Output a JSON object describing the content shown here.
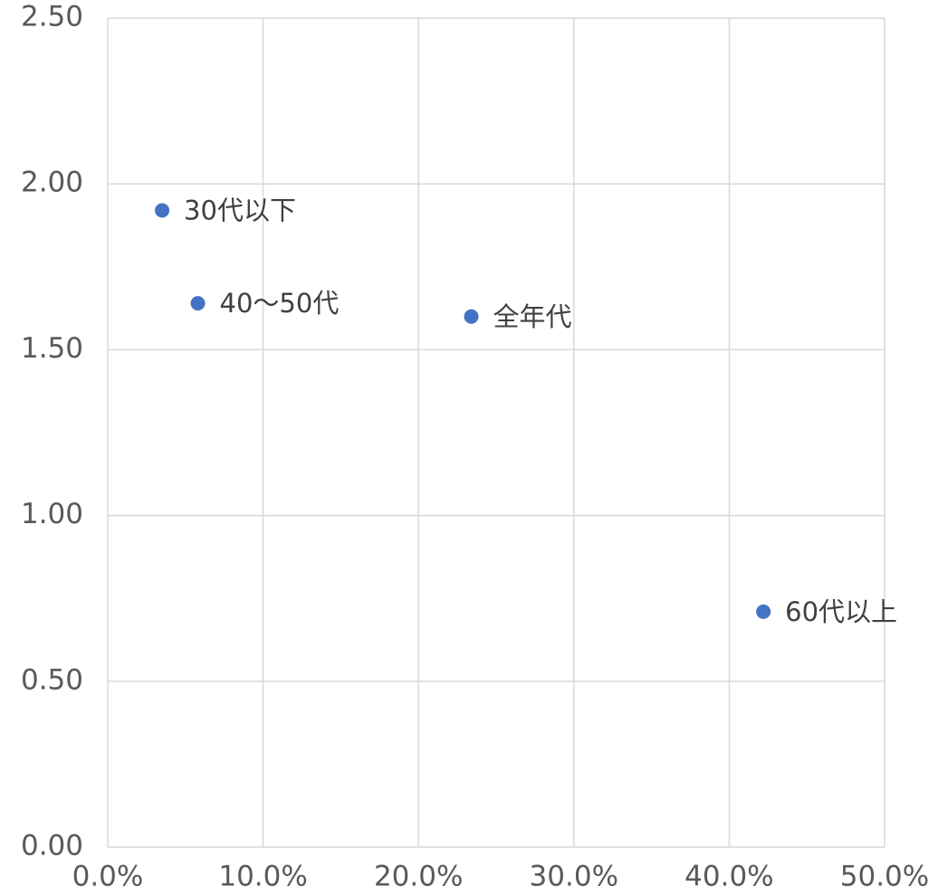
{
  "chart_data": {
    "type": "scatter",
    "labels": [
      "30代以下",
      "40～50代",
      "全年代",
      "60代以上"
    ],
    "x": [
      3.5,
      5.8,
      23.4,
      42.2
    ],
    "values": [
      1.92,
      1.64,
      1.6,
      0.71
    ],
    "color": "#4472c4",
    "xlim": [
      0,
      50
    ],
    "xticks": [
      {
        "value": 0,
        "label": "0.0%"
      },
      {
        "value": 10,
        "label": "10.0%"
      },
      {
        "value": 20,
        "label": "20.0%"
      },
      {
        "value": 30,
        "label": "30.0%"
      },
      {
        "value": 40,
        "label": "40.0%"
      },
      {
        "value": 50,
        "label": "50.0%"
      }
    ],
    "ylim": [
      0,
      2.5
    ],
    "yticks": [
      {
        "value": 0,
        "label": "0.00"
      },
      {
        "value": 0.5,
        "label": "0.50"
      },
      {
        "value": 1,
        "label": "1.00"
      },
      {
        "value": 1.5,
        "label": "1.50"
      },
      {
        "value": 2,
        "label": "2.00"
      },
      {
        "value": 2.5,
        "label": "2.50"
      }
    ],
    "grid": true
  }
}
